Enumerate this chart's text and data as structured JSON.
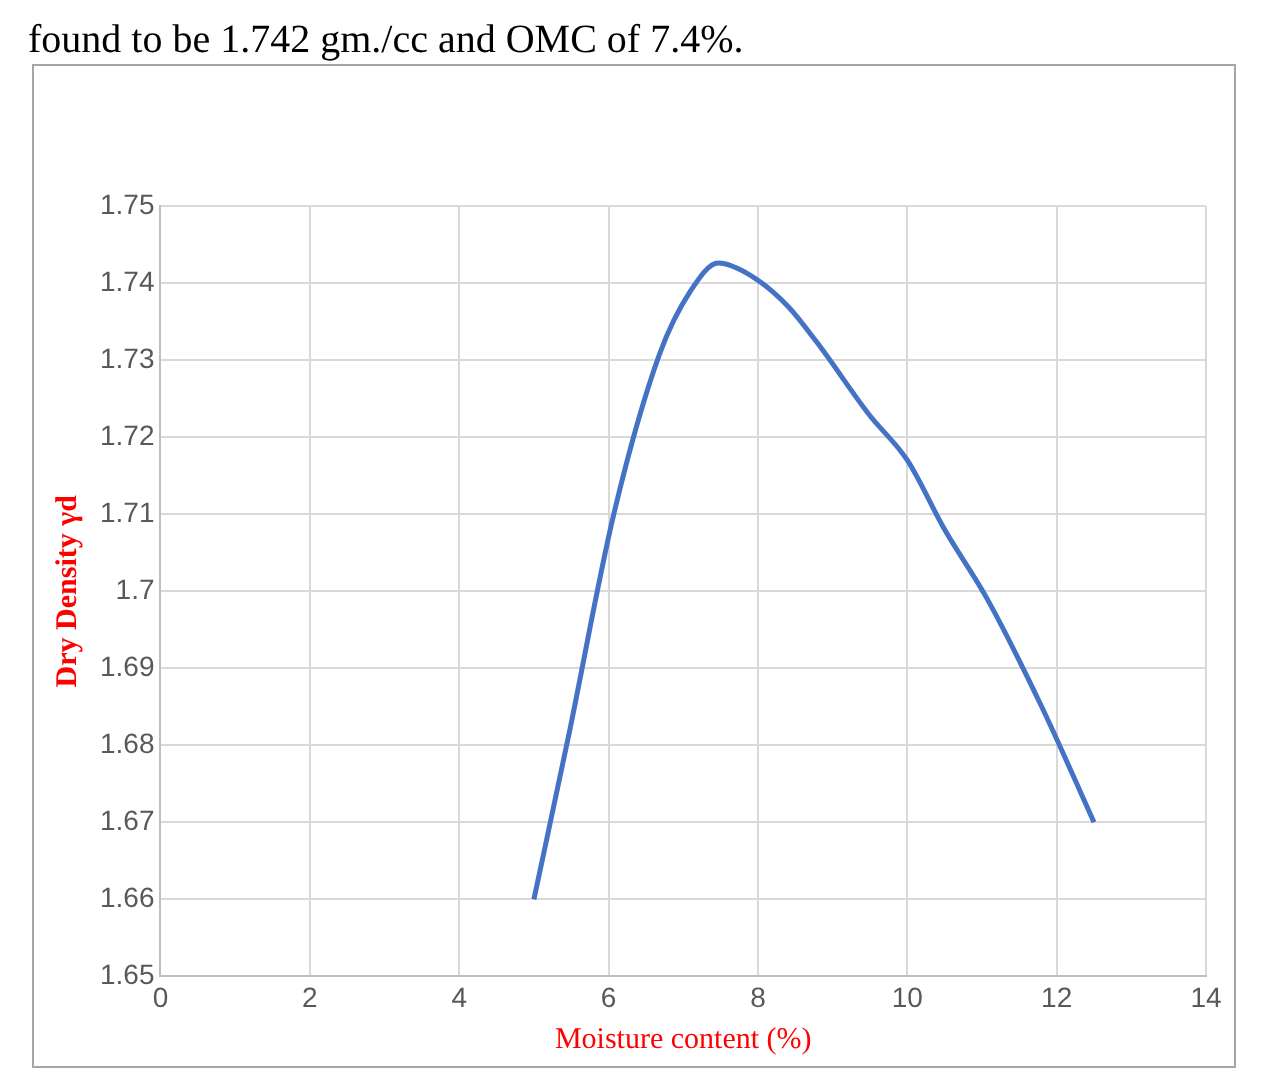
{
  "chart_data": {
    "type": "line",
    "annotations": [
      "found to be 1.742 gm./cc and OMC of 7.4%."
    ],
    "xlabel": "Moisture content (%)",
    "ylabel": "Dry Density γd",
    "x": [
      5,
      5.46,
      6.07,
      6.68,
      7.1,
      7.47,
      7.9,
      8.4,
      8.79,
      9.49,
      10,
      10.5,
      11.07,
      11.8,
      12.5
    ],
    "series": [
      {
        "color": "#4472c4",
        "values": [
          1.66,
          1.681,
          1.71,
          1.7307,
          1.739,
          1.7426,
          1.741,
          1.737,
          1.7323,
          1.7229,
          1.717,
          1.708,
          1.699,
          1.685,
          1.67
        ]
      }
    ],
    "xlim": [
      0,
      14
    ],
    "xticks": [
      0,
      2,
      4,
      6,
      8,
      10,
      12,
      14
    ],
    "ylim": [
      1.65,
      1.75
    ],
    "yticks": [
      {
        "value": 1.65,
        "label": "1.65"
      },
      {
        "value": 1.66,
        "label": "1.66"
      },
      {
        "value": 1.67,
        "label": "1.67"
      },
      {
        "value": 1.68,
        "label": "1.68"
      },
      {
        "value": 1.69,
        "label": "1.69"
      },
      {
        "value": 1.7,
        "label": "1.7"
      },
      {
        "value": 1.71,
        "label": "1.71"
      },
      {
        "value": 1.72,
        "label": "1.72"
      },
      {
        "value": 1.73,
        "label": "1.73"
      },
      {
        "value": 1.74,
        "label": "1.74"
      },
      {
        "value": 1.75,
        "label": "1.75"
      }
    ],
    "grid": true,
    "marker": "none",
    "line_style": "solid",
    "legend": false
  }
}
